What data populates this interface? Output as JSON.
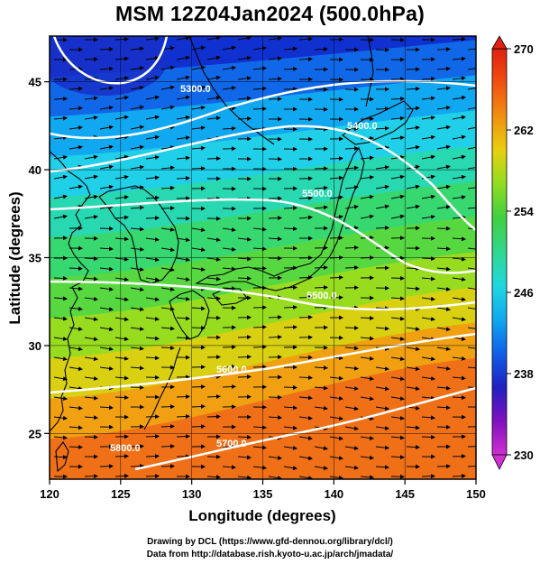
{
  "title": "MSM 12Z04Jan2024 (500.0hPa)",
  "credits": {
    "line1": "Drawing by DCL (https://www.gfd-dennou.org/library/dcl/)",
    "line2": "Data from http://database.rish.kyoto-u.ac.jp/arch/jmadata/"
  },
  "map": {
    "x_label": "Longitude (degrees)",
    "y_label": "Latitude  (degrees)",
    "x_range": [
      120,
      150
    ],
    "y_range": [
      22.4,
      47.6
    ],
    "x_ticks": [
      "120",
      "125",
      "130",
      "135",
      "140",
      "145",
      "150"
    ],
    "y_ticks": [
      "25",
      "30",
      "35",
      "40",
      "45"
    ],
    "grid": true,
    "contour_labels": [
      "5300.0",
      "5400.0",
      "5500.0",
      "5500.0",
      "5600.0",
      "5700.0",
      "5800.0"
    ]
  },
  "colorbar": {
    "tick_labels": [
      "270",
      "262",
      "254",
      "246",
      "238",
      "230"
    ],
    "range": [
      230,
      270
    ],
    "colors": [
      "#d030d0",
      "#8010c0",
      "#2020c0",
      "#1060e8",
      "#10a8f0",
      "#20d8e0",
      "#30d890",
      "#40d040",
      "#90dc20",
      "#e8d010",
      "#f09010",
      "#f05010",
      "#e02010"
    ]
  }
}
